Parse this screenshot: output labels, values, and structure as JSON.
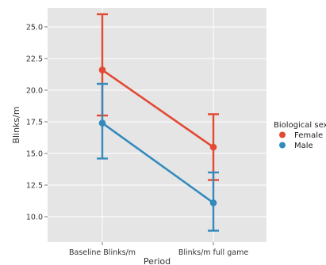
{
  "chart_data": {
    "type": "line",
    "style": "point plot with error bars",
    "categories": [
      "Baseline Blinks/m",
      "Blinks/m full game"
    ],
    "xlabel": "Period",
    "ylabel": "Blinks/m",
    "ylim": [
      8.0,
      26.5
    ],
    "yticks": [
      "10.0",
      "12.5",
      "15.0",
      "17.5",
      "20.0",
      "22.5",
      "25.0"
    ],
    "grid": true,
    "legend": {
      "title": "Biological sex",
      "placement": "right"
    },
    "series": [
      {
        "name": "Female",
        "color": "#e24a33",
        "values": [
          21.6,
          15.5
        ],
        "error_low": [
          18.0,
          12.9
        ],
        "error_high": [
          26.0,
          18.1
        ]
      },
      {
        "name": "Male",
        "color": "#348abd",
        "values": [
          17.4,
          11.1
        ],
        "error_low": [
          14.6,
          8.9
        ],
        "error_high": [
          20.5,
          13.5
        ]
      }
    ]
  }
}
